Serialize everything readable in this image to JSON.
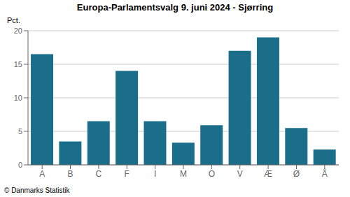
{
  "chart_data": {
    "type": "bar",
    "title": "Europa-Parlamentsvalg 9. juni 2024 - Sjørring",
    "ylabel": "Pct.",
    "footer": "© Danmarks Statistik",
    "categories": [
      "A",
      "B",
      "C",
      "F",
      "I",
      "M",
      "O",
      "V",
      "Æ",
      "Ø",
      "Å"
    ],
    "values": [
      16.5,
      3.5,
      6.5,
      14.0,
      6.5,
      3.3,
      5.9,
      17.0,
      19.0,
      5.5,
      2.3
    ],
    "color": "#1a6e8a",
    "ylim": [
      0,
      20
    ],
    "yticks": [
      0,
      5,
      10,
      15,
      20
    ],
    "grid": true
  }
}
